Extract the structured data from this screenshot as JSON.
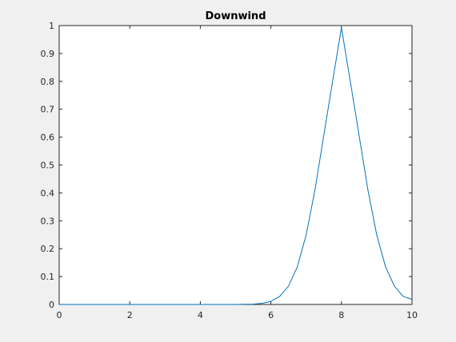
{
  "chart_data": {
    "type": "line",
    "title": "Downwind",
    "xlabel": "",
    "ylabel": "",
    "xlim": [
      0,
      10
    ],
    "ylim": [
      0,
      1
    ],
    "x_ticks": [
      "0",
      "2",
      "4",
      "6",
      "8",
      "10"
    ],
    "y_ticks": [
      "0",
      "0.1",
      "0.2",
      "0.3",
      "0.4",
      "0.5",
      "0.6",
      "0.7",
      "0.8",
      "0.9",
      "1"
    ],
    "grid": false,
    "legend": "none",
    "series": [
      {
        "color": "#0072bd",
        "x": [
          0,
          1,
          2,
          3,
          4,
          5,
          5.5,
          5.75,
          6,
          6.25,
          6.5,
          6.75,
          7,
          7.25,
          7.5,
          7.75,
          8,
          8.25,
          8.5,
          8.75,
          9,
          9.25,
          9.5,
          9.75,
          10
        ],
        "y": [
          0,
          0,
          0,
          0,
          0,
          0.0001,
          0.0011,
          0.0039,
          0.011,
          0.0287,
          0.0658,
          0.1353,
          0.2494,
          0.4111,
          0.6065,
          0.8007,
          0.9925,
          0.8007,
          0.6065,
          0.4111,
          0.2494,
          0.1353,
          0.0658,
          0.0287,
          0.0183
        ]
      }
    ]
  }
}
